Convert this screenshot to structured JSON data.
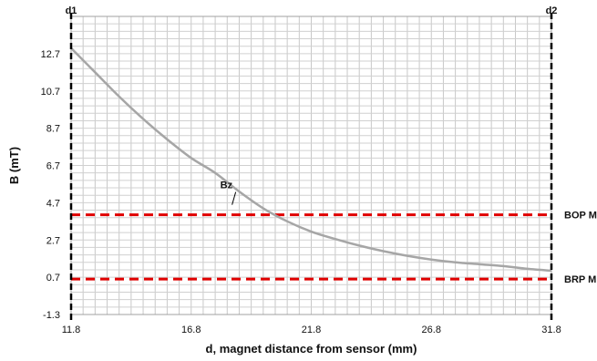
{
  "chart_data": {
    "type": "line",
    "xlabel": "d, magnet distance from sensor (mm)",
    "ylabel": "B (mT)",
    "xlim": [
      11.8,
      31.8
    ],
    "ylim": [
      -1.3,
      14.7
    ],
    "x_ticks": [
      "11.8",
      "16.8",
      "21.8",
      "26.8",
      "31.8"
    ],
    "y_ticks": [
      "-1.3",
      "0.7",
      "2.7",
      "4.7",
      "6.7",
      "8.7",
      "10.7",
      "12.7"
    ],
    "grid": true,
    "series": [
      {
        "name": "Bz",
        "color": "#a6a6a6",
        "x": [
          11.8,
          12.8,
          13.8,
          14.8,
          15.8,
          16.8,
          17.8,
          18.8,
          19.8,
          20.8,
          21.8,
          22.8,
          23.8,
          24.8,
          25.8,
          26.8,
          27.8,
          28.8,
          29.8,
          30.8,
          31.8
        ],
        "y": [
          13.0,
          11.7,
          10.4,
          9.2,
          8.1,
          7.1,
          6.3,
          5.3,
          4.4,
          3.7,
          3.15,
          2.75,
          2.4,
          2.1,
          1.85,
          1.65,
          1.5,
          1.4,
          1.3,
          1.15,
          1.05
        ]
      }
    ],
    "thresholds": [
      {
        "label": "BOP M",
        "value": 4.05,
        "color": "#e00000"
      },
      {
        "label": "BRP M",
        "value": 0.6,
        "color": "#e00000"
      }
    ],
    "markers": [
      {
        "label": "d1",
        "x": 11.8
      },
      {
        "label": "d2",
        "x": 31.8
      }
    ],
    "annotation": {
      "text": "Bz",
      "x": 19.3,
      "y": 4.2
    }
  }
}
